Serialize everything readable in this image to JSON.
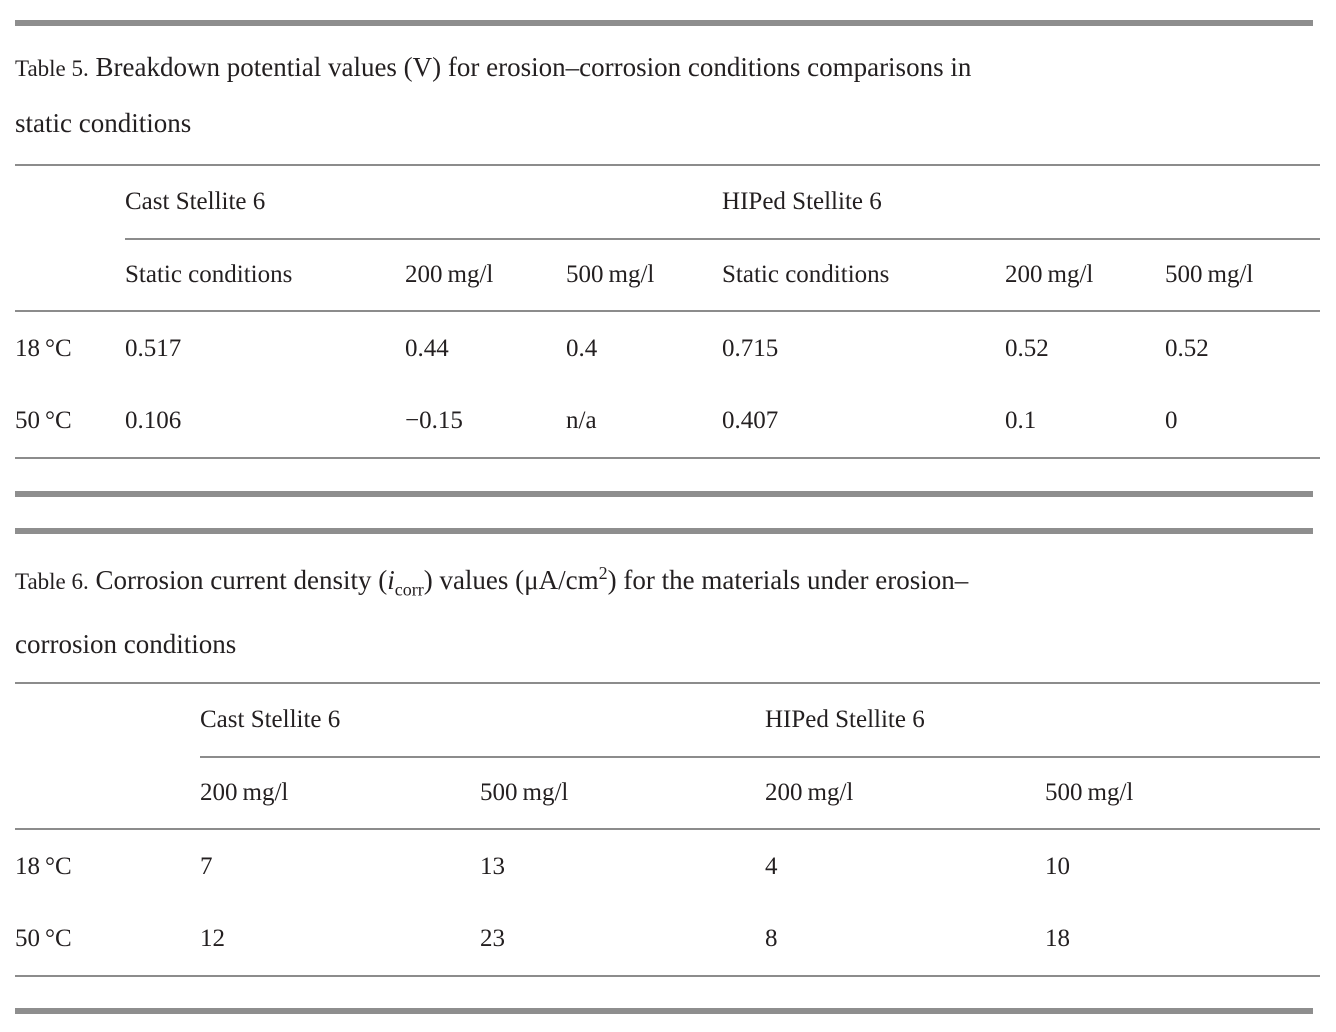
{
  "table5": {
    "label": "Table 5.",
    "title_line1": "Breakdown potential values (V) for erosion–corrosion conditions comparisons in",
    "title_line2": "static conditions",
    "group_headers": [
      "Cast Stellite 6",
      "HIPed Stellite 6"
    ],
    "sub_headers": [
      "Static conditions",
      "200 mg/l",
      "500 mg/l",
      "Static conditions",
      "200 mg/l",
      "500 mg/l"
    ],
    "rows": [
      {
        "label": "18 °C",
        "values": [
          "0.517",
          "0.44",
          "0.4",
          "0.715",
          "0.52",
          "0.52"
        ]
      },
      {
        "label": "50 °C",
        "values": [
          "0.106",
          "−0.15",
          "n/a",
          "0.407",
          "0.1",
          "0"
        ]
      }
    ]
  },
  "table6": {
    "label": "Table 6.",
    "caption_parts": {
      "p1": "Corrosion current density (",
      "ital": "i",
      "sub": "corr",
      "p2": ") values (μA/cm",
      "sup": "2",
      "p3": ") for the materials under erosion–",
      "line2": "corrosion conditions"
    },
    "group_headers": [
      "Cast Stellite 6",
      "HIPed Stellite 6"
    ],
    "sub_headers": [
      "200 mg/l",
      "500 mg/l",
      "200 mg/l",
      "500 mg/l"
    ],
    "rows": [
      {
        "label": "18 °C",
        "values": [
          "7",
          "13",
          "4",
          "10"
        ]
      },
      {
        "label": "50 °C",
        "values": [
          "12",
          "23",
          "8",
          "18"
        ]
      }
    ]
  },
  "colors": {
    "rule_gray": "#8c8c8c",
    "bar_gray": "#8e8e8e",
    "text": "#231f20"
  }
}
